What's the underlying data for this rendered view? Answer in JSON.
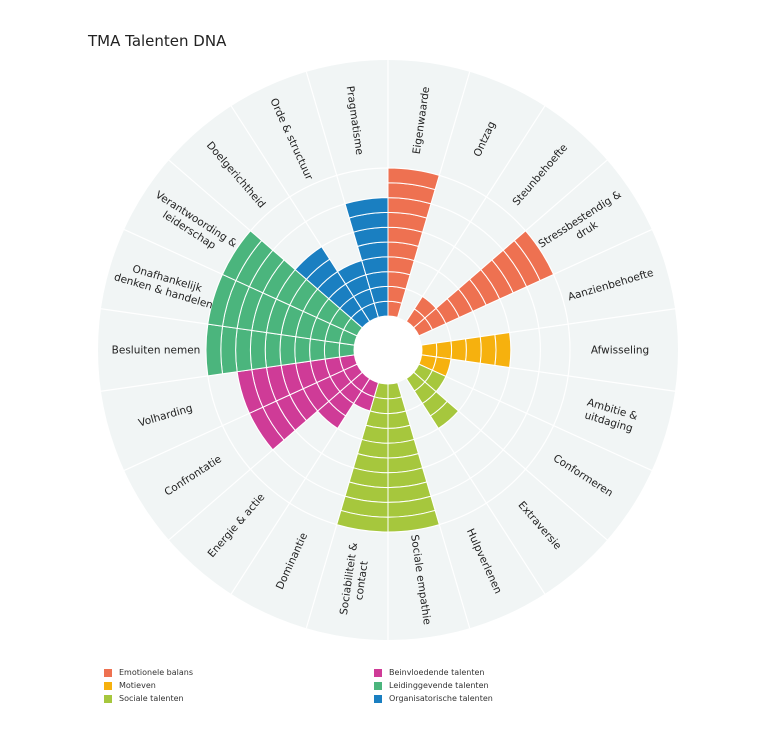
{
  "title": "TMA Talenten DNA",
  "chart_data": {
    "type": "polar-bar",
    "max": 10,
    "categories": [
      {
        "label": "Eigenwaarde",
        "value": 10,
        "group": "emotioneel"
      },
      {
        "label": "Ontzag",
        "value": 0,
        "group": "emotioneel"
      },
      {
        "label": "Steunbehoefte",
        "value": 2,
        "group": "emotioneel"
      },
      {
        "label": "Stressbestendig & druk",
        "value": 10,
        "group": "emotioneel"
      },
      {
        "label": "Aanzienbehoefte",
        "value": 0,
        "group": "motieven"
      },
      {
        "label": "Afwisseling",
        "value": 6,
        "group": "motieven"
      },
      {
        "label": "Ambitie & uitdaging",
        "value": 2,
        "group": "motieven"
      },
      {
        "label": "Conformeren",
        "value": 2,
        "group": "sociaal"
      },
      {
        "label": "Extraversie",
        "value": 4,
        "group": "sociaal"
      },
      {
        "label": "Hulpverlenen",
        "value": 0,
        "group": "sociaal"
      },
      {
        "label": "Sociale empathie",
        "value": 10,
        "group": "sociaal"
      },
      {
        "label": "Sociabiliteit & contact",
        "value": 10,
        "group": "sociaal"
      },
      {
        "label": "Dominantie",
        "value": 2,
        "group": "beinvloedend"
      },
      {
        "label": "Energie & actie",
        "value": 4,
        "group": "beinvloedend"
      },
      {
        "label": "Confrontatie",
        "value": 8,
        "group": "beinvloedend"
      },
      {
        "label": "Volharding",
        "value": 8,
        "group": "beinvloedend"
      },
      {
        "label": "Besluiten nemen",
        "value": 10,
        "group": "leidinggevend"
      },
      {
        "label": "Onafhankelijk denken & handelen",
        "value": 10,
        "group": "leidinggevend"
      },
      {
        "label": "Verantwoording & leiderschap",
        "value": 10,
        "group": "leidinggevend"
      },
      {
        "label": "Doelgerichtheid",
        "value": 6,
        "group": "organisatorisch"
      },
      {
        "label": "Orde & structuur",
        "value": 4,
        "group": "organisatorisch"
      },
      {
        "label": "Pragmatisme",
        "value": 8,
        "group": "organisatorisch"
      }
    ],
    "groups": {
      "emotioneel": {
        "name": "Emotionele balans",
        "color": "#ee7151"
      },
      "motieven": {
        "name": "Motieven",
        "color": "#f6b10e"
      },
      "sociaal": {
        "name": "Sociale talenten",
        "color": "#a6c73d"
      },
      "beinvloedend": {
        "name": "Beinvloedende talenten",
        "color": "#cf3b97"
      },
      "leidinggevend": {
        "name": "Leidinggevende talenten",
        "color": "#4bb57d"
      },
      "organisatorisch": {
        "name": "Organisatorische talenten",
        "color": "#1a7fc1"
      }
    },
    "legend_left": [
      "emotioneel",
      "motieven",
      "sociaal"
    ],
    "legend_right": [
      "beinvloedend",
      "leidinggevend",
      "organisatorisch"
    ],
    "background_color": "#f1f5f5",
    "grid": true
  }
}
